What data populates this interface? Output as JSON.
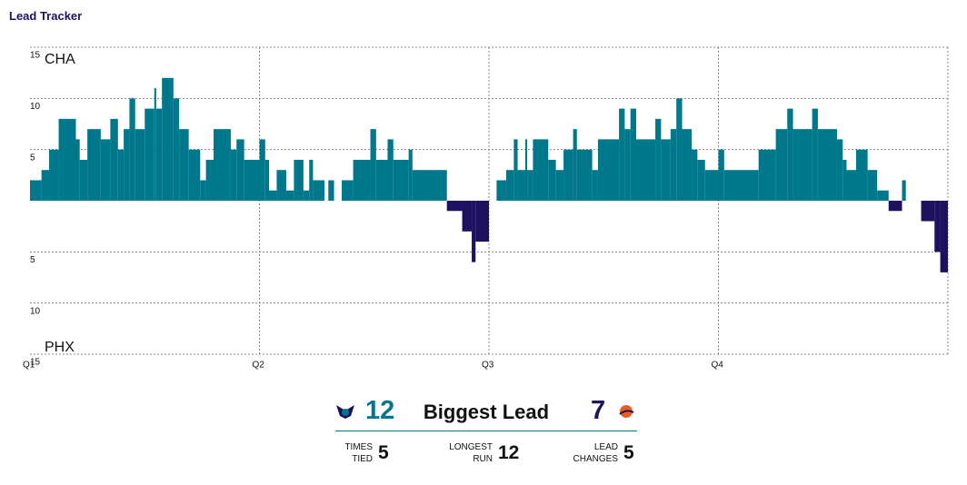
{
  "title": "Lead Tracker",
  "chart_data": {
    "type": "step",
    "team_top": "CHA",
    "team_bottom": "PHX",
    "color_positive": "#00788c",
    "color_negative": "#1d1160",
    "xlim": [
      0,
      48
    ],
    "xticks": [
      {
        "value": 0,
        "label": "Q1"
      },
      {
        "value": 12,
        "label": "Q2"
      },
      {
        "value": 24,
        "label": "Q3"
      },
      {
        "value": 36,
        "label": "Q4"
      }
    ],
    "ylim": [
      -15,
      15
    ],
    "yticks": [
      15,
      10,
      5,
      {
        "value": -5,
        "label": "5"
      },
      {
        "value": -10,
        "label": "10"
      },
      {
        "value": -15,
        "label": "15"
      }
    ],
    "grid": true,
    "x": [
      0,
      0.6,
      1,
      1.5,
      2.4,
      2.6,
      3,
      3.7,
      4.2,
      4.6,
      4.9,
      5.2,
      5.5,
      6,
      6.5,
      6.6,
      6.9,
      7.5,
      7.8,
      8.3,
      8.9,
      9.2,
      9.6,
      10.5,
      10.8,
      11.2,
      12,
      12.3,
      12.5,
      12.9,
      13.4,
      13.8,
      14.3,
      14.6,
      14.8,
      15.4,
      15.6,
      15.9,
      16.3,
      16.9,
      17.8,
      18.1,
      18.7,
      19.0,
      19.8,
      20.0,
      21.8,
      22.6,
      23.1,
      23.3,
      24,
      24.4,
      24.9,
      25.3,
      25.5,
      25.9,
      26.0,
      26.3,
      27.1,
      27.5,
      27.9,
      28.4,
      28.6,
      29.4,
      29.7,
      30.8,
      31.1,
      31.4,
      31.7,
      32.7,
      33.0,
      33.5,
      33.8,
      34.1,
      34.6,
      34.9,
      35.3,
      36,
      36.3,
      38.1,
      39.0,
      39.6,
      39.9,
      40.9,
      41.2,
      42.2,
      42.5,
      42.7,
      43.2,
      43.8,
      44.3,
      44.9,
      45.6,
      45.8,
      46.6,
      47.3,
      47.6
    ],
    "values": [
      2,
      3,
      5,
      8,
      6,
      4,
      7,
      6,
      8,
      5,
      7,
      10,
      7,
      9,
      11,
      9,
      12,
      10,
      7,
      5,
      2,
      4,
      7,
      5,
      6,
      4,
      6,
      4,
      1,
      3,
      1,
      4,
      1,
      4,
      2,
      0,
      2,
      0,
      2,
      4,
      7,
      4,
      6,
      4,
      5,
      3,
      -1,
      -3,
      -6,
      -4,
      0,
      2,
      3,
      6,
      3,
      6,
      3,
      6,
      4,
      3,
      5,
      7,
      5,
      3,
      6,
      9,
      7,
      9,
      6,
      8,
      6,
      7,
      10,
      7,
      5,
      4,
      3,
      5,
      3,
      5,
      7,
      9,
      7,
      9,
      7,
      6,
      4,
      3,
      5,
      3,
      1,
      -1,
      2,
      0,
      -2,
      -5,
      -7
    ]
  },
  "summary": {
    "title": "Biggest Lead",
    "home_value": 12,
    "away_value": 7,
    "stats": [
      {
        "label": "TIMES TIED",
        "value": 5
      },
      {
        "label": "LONGEST RUN",
        "value": 12
      },
      {
        "label": "LEAD CHANGES",
        "value": 5
      }
    ]
  }
}
